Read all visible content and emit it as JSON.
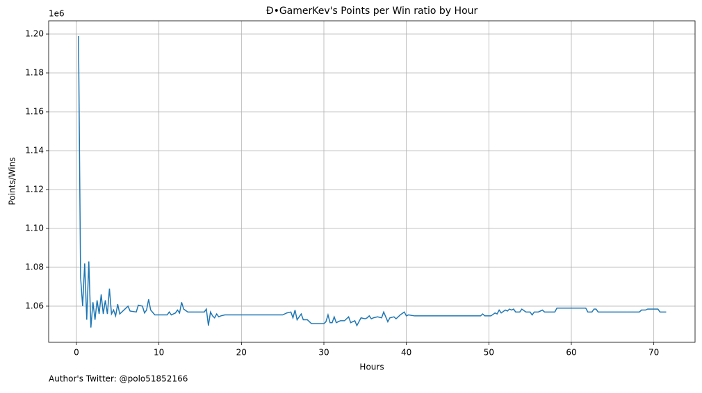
{
  "chart_data": {
    "type": "line",
    "title": "Đ•GamerKev's Points per Win ratio by Hour",
    "x_label": "Hours",
    "y_label": "Points/Wins",
    "y_offset_label": "1e6",
    "footer": "Author's Twitter: @polo51852166",
    "color": "#1f77b4",
    "grid": true,
    "xlim": [
      -3.37,
      75.0
    ],
    "ylim": [
      1041400,
      1206800
    ],
    "xticks": [
      0,
      10,
      20,
      30,
      40,
      50,
      60,
      70
    ],
    "yticks": [
      {
        "value": 1060000,
        "label": "1.06"
      },
      {
        "value": 1080000,
        "label": "1.08"
      },
      {
        "value": 1100000,
        "label": "1.10"
      },
      {
        "value": 1120000,
        "label": "1.12"
      },
      {
        "value": 1140000,
        "label": "1.14"
      },
      {
        "value": 1160000,
        "label": "1.16"
      },
      {
        "value": 1180000,
        "label": "1.18"
      },
      {
        "value": 1200000,
        "label": "1.20"
      }
    ],
    "x": [
      0.25,
      0.5,
      0.75,
      1.0,
      1.25,
      1.5,
      1.75,
      2.0,
      2.25,
      2.5,
      2.75,
      3.0,
      3.25,
      3.5,
      3.75,
      4.0,
      4.25,
      4.5,
      4.75,
      5.0,
      5.25,
      5.75,
      6.25,
      6.5,
      7.25,
      7.5,
      8.0,
      8.25,
      8.5,
      8.75,
      9.0,
      9.5,
      11.0,
      11.25,
      11.5,
      12.0,
      12.25,
      12.5,
      12.75,
      13.0,
      13.5,
      14.0,
      15.5,
      15.75,
      16.0,
      16.25,
      16.5,
      16.75,
      17.0,
      17.25,
      17.5,
      18.0,
      25.0,
      25.5,
      26.0,
      26.25,
      26.5,
      26.75,
      27.25,
      27.5,
      28.0,
      28.5,
      30.0,
      30.25,
      30.5,
      30.75,
      31.0,
      31.25,
      31.5,
      32.0,
      32.5,
      33.0,
      33.25,
      33.75,
      34.0,
      34.5,
      35.0,
      35.25,
      35.5,
      35.75,
      36.0,
      36.5,
      37.0,
      37.25,
      37.75,
      38.0,
      38.5,
      38.75,
      39.25,
      39.75,
      40.0,
      40.25,
      41.0,
      49.0,
      49.25,
      49.5,
      50.0,
      50.25,
      50.75,
      51.0,
      51.25,
      51.5,
      52.0,
      52.25,
      52.5,
      52.75,
      53.0,
      53.25,
      53.75,
      54.0,
      54.5,
      55.0,
      55.25,
      55.5,
      56.0,
      56.5,
      56.75,
      58.0,
      58.25,
      61.75,
      62.0,
      62.5,
      62.75,
      63.0,
      63.25,
      68.25,
      68.5,
      69.0,
      69.25,
      70.5,
      70.75,
      71.5
    ],
    "values": [
      1199000,
      1075000,
      1060000,
      1082000,
      1053000,
      1083000,
      1049000,
      1062000,
      1053000,
      1063000,
      1056000,
      1066000,
      1056000,
      1063000,
      1056000,
      1069000,
      1056000,
      1058000,
      1055000,
      1061000,
      1056000,
      1058000,
      1060000,
      1057500,
      1057000,
      1060500,
      1060000,
      1056500,
      1058000,
      1063500,
      1058000,
      1055500,
      1055500,
      1057000,
      1055500,
      1056500,
      1058000,
      1056500,
      1062000,
      1058500,
      1057000,
      1057000,
      1057000,
      1058500,
      1050000,
      1057000,
      1055000,
      1054000,
      1056000,
      1054500,
      1055000,
      1055500,
      1055500,
      1056500,
      1057000,
      1054000,
      1058000,
      1053000,
      1056000,
      1053000,
      1053000,
      1051000,
      1051000,
      1052000,
      1055500,
      1051500,
      1051500,
      1054500,
      1051500,
      1052500,
      1052500,
      1054500,
      1051500,
      1052500,
      1050000,
      1054000,
      1053500,
      1054000,
      1055000,
      1053500,
      1054000,
      1054500,
      1054000,
      1057000,
      1052000,
      1054000,
      1054500,
      1053500,
      1055500,
      1057000,
      1055000,
      1055500,
      1055000,
      1055000,
      1056000,
      1055000,
      1055000,
      1055000,
      1056500,
      1056000,
      1058000,
      1056500,
      1058000,
      1057500,
      1058500,
      1058000,
      1058500,
      1057000,
      1057000,
      1058500,
      1057000,
      1057000,
      1055500,
      1057000,
      1057000,
      1058000,
      1057000,
      1057000,
      1059000,
      1059000,
      1057000,
      1057000,
      1058500,
      1058500,
      1057000,
      1057000,
      1058000,
      1058000,
      1058500,
      1058500,
      1057000,
      1057000
    ]
  }
}
